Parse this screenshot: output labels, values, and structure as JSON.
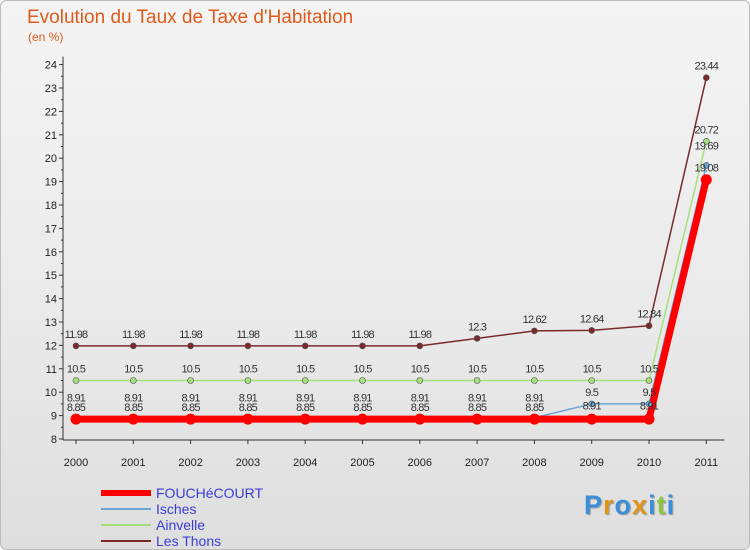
{
  "header": {
    "title": "Evolution du Taux de Taxe d'Habitation",
    "unit": "(en %)"
  },
  "logo": {
    "letters": [
      "P",
      "r",
      "o",
      "x",
      "i",
      "t",
      "i"
    ],
    "colors": [
      "#3a8fd8",
      "#e0941a",
      "#3a8fd8",
      "#e0941a",
      "#3a8fd8",
      "#8cc63f",
      "#3a8fd8"
    ]
  },
  "chart_data": {
    "type": "line",
    "x": [
      "2000",
      "2001",
      "2002",
      "2003",
      "2004",
      "2005",
      "2006",
      "2007",
      "2008",
      "2009",
      "2010",
      "2011"
    ],
    "ylim": [
      8,
      24
    ],
    "yticks": [
      "8",
      "9",
      "10",
      "11",
      "12",
      "13",
      "14",
      "15",
      "16",
      "17",
      "18",
      "19",
      "20",
      "21",
      "22",
      "23",
      "24"
    ],
    "grid": false,
    "legend_position": "bottom-left",
    "series": [
      {
        "name": "FOUCHéCOURT",
        "color": "#ff0000",
        "values": [
          8.85,
          8.85,
          8.85,
          8.85,
          8.85,
          8.85,
          8.85,
          8.85,
          8.85,
          8.85,
          8.85,
          19.08
        ],
        "labels": [
          "8.85",
          "8.85",
          "8.85",
          "8.85",
          "8.85",
          "8.85",
          "8.85",
          "8.85",
          "8.85",
          "",
          "",
          "19.08"
        ]
      },
      {
        "name": "Isches",
        "color": "#6ba6d8",
        "values": [
          8.91,
          8.91,
          8.91,
          8.91,
          8.91,
          8.91,
          8.91,
          8.91,
          8.91,
          9.5,
          9.5,
          19.69
        ],
        "labels": [
          "8.91",
          "8.91",
          "8.91",
          "8.91",
          "8.91",
          "8.91",
          "8.91",
          "8.91",
          "8.91",
          "9.5",
          "9.5",
          "19.69"
        ],
        "sub_labels": [
          "",
          "",
          "",
          "",
          "",
          "",
          "",
          "",
          "",
          "8.91",
          "8.91",
          ""
        ]
      },
      {
        "name": "Ainvelle",
        "color": "#a6e07c",
        "values": [
          10.5,
          10.5,
          10.5,
          10.5,
          10.5,
          10.5,
          10.5,
          10.5,
          10.5,
          10.5,
          10.5,
          20.72
        ],
        "labels": [
          "10.5",
          "10.5",
          "10.5",
          "10.5",
          "10.5",
          "10.5",
          "10.5",
          "10.5",
          "10.5",
          "10.5",
          "10.5",
          "20.72"
        ]
      },
      {
        "name": "Les Thons",
        "color": "#7a2a2a",
        "values": [
          11.98,
          11.98,
          11.98,
          11.98,
          11.98,
          11.98,
          11.98,
          12.3,
          12.62,
          12.64,
          12.84,
          23.44
        ],
        "labels": [
          "11.98",
          "11.98",
          "11.98",
          "11.98",
          "11.98",
          "11.98",
          "11.98",
          "12.3",
          "12.62",
          "12.64",
          "12.84",
          "23.44"
        ]
      }
    ]
  }
}
